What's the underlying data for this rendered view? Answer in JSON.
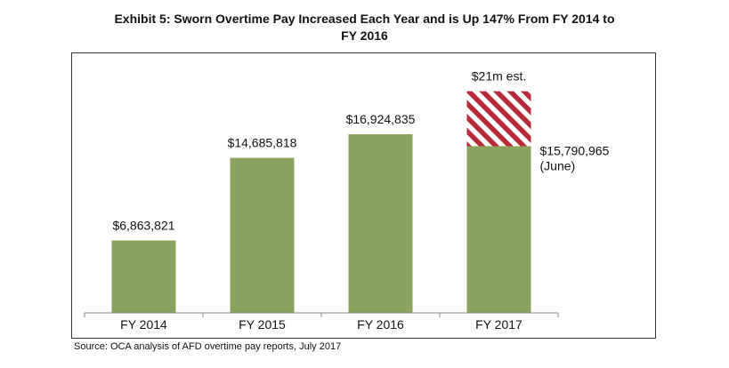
{
  "title_line1": "Exhibit 5: Sworn Overtime Pay Increased Each Year and is Up 147% From FY 2014 to",
  "title_line2": "FY 2016",
  "source": "Source: OCA analysis of AFD overtime pay reports, July 2017",
  "chart_data": {
    "type": "bar",
    "title": "Exhibit 5: Sworn Overtime Pay Increased Each Year and is Up 147% From FY 2014 to FY 2016",
    "xlabel": "",
    "ylabel": "",
    "ylim": [
      0,
      24000000
    ],
    "grid": false,
    "categories": [
      "FY 2014",
      "FY 2015",
      "FY 2016",
      "FY 2017"
    ],
    "series": [
      {
        "name": "Actual",
        "values": [
          6863821,
          14685818,
          16924835,
          15790965
        ],
        "labels": [
          "$6,863,821",
          "$14,685,818",
          "$16,924,835",
          "$15,790,965"
        ],
        "color": "#8aa35e"
      },
      {
        "name": "Estimate",
        "category": "FY 2017",
        "total": 21000000,
        "label": "$21m est.",
        "colors": [
          "#b8293a",
          "#ffffff"
        ]
      }
    ],
    "annotations": {
      "fy2017_note": "(June)"
    }
  }
}
